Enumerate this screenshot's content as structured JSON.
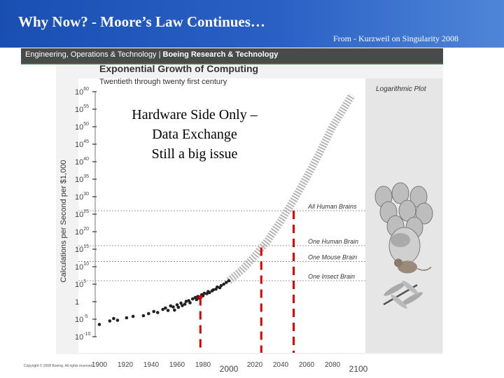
{
  "slide": {
    "title": "Why Now? - Moore’s Law Continues…",
    "credit": "From - Kurzweil on Singularity 2008",
    "org_prefix": "Engineering, Operations & Technology |",
    "org_bold": " Boeing Research & Technology",
    "overlay_lines": [
      "Hardware Side Only –",
      "Data Exchange",
      "Still a big issue"
    ],
    "copyright": "Copyright © 2008 Boeing. All rights reserved."
  },
  "chart_data": {
    "type": "scatter",
    "title": "Exponential Growth of Computing",
    "subtitle": "Twentieth through twenty first century",
    "plot_label": "Logarithmic Plot",
    "ylabel": "Calculations per Second per $1,000",
    "xlabel": "",
    "y_scale": "log10",
    "xlim": [
      1900,
      2100
    ],
    "ylim_exponent": [
      -10,
      60
    ],
    "x_ticks": [
      {
        "value": 1900,
        "label": "1900"
      },
      {
        "value": 1920,
        "label": "1920"
      },
      {
        "value": 1940,
        "label": "1940"
      },
      {
        "value": 1960,
        "label": "1960"
      },
      {
        "value": 1980,
        "label": "1980"
      },
      {
        "value": 2000,
        "label": "2000"
      },
      {
        "value": 2020,
        "label": "2020"
      },
      {
        "value": 2040,
        "label": "2040"
      },
      {
        "value": 2060,
        "label": "2060"
      },
      {
        "value": 2080,
        "label": "2080"
      },
      {
        "value": 2100,
        "label": "2100"
      }
    ],
    "y_ticks": [
      {
        "exp": 60,
        "base": "10",
        "sup": "60"
      },
      {
        "exp": 55,
        "base": "10",
        "sup": "55"
      },
      {
        "exp": 50,
        "base": "10",
        "sup": "50"
      },
      {
        "exp": 45,
        "base": "10",
        "sup": "45"
      },
      {
        "exp": 40,
        "base": "10",
        "sup": "40"
      },
      {
        "exp": 35,
        "base": "10",
        "sup": "35"
      },
      {
        "exp": 30,
        "base": "10",
        "sup": "30"
      },
      {
        "exp": 25,
        "base": "10",
        "sup": "25"
      },
      {
        "exp": 20,
        "base": "10",
        "sup": "20"
      },
      {
        "exp": 15,
        "base": "10",
        "sup": "15"
      },
      {
        "exp": 10,
        "base": "10",
        "sup": "10"
      },
      {
        "exp": 5,
        "base": "10",
        "sup": "5"
      },
      {
        "exp": 0,
        "base": "1",
        "sup": ""
      },
      {
        "exp": -5,
        "base": "10",
        "sup": "-5"
      },
      {
        "exp": -10,
        "base": "10",
        "sup": "-10"
      }
    ],
    "reference_lines": [
      {
        "name": "All Human Brains",
        "exp": 26
      },
      {
        "name": "One Human Brain",
        "exp": 16
      },
      {
        "name": "One Mouse Brain",
        "exp": 11.5
      },
      {
        "name": "One Insect Brain",
        "exp": 6
      }
    ],
    "data_points": [
      [
        1900,
        -6.5
      ],
      [
        1908,
        -5.5
      ],
      [
        1911,
        -4.8
      ],
      [
        1914,
        -5.3
      ],
      [
        1921,
        -4.6
      ],
      [
        1926,
        -4.2
      ],
      [
        1934,
        -4.0
      ],
      [
        1938,
        -3.4
      ],
      [
        1942,
        -2.8
      ],
      [
        1945,
        -3.1
      ],
      [
        1949,
        -2.2
      ],
      [
        1951,
        -1.8
      ],
      [
        1953,
        -2.5
      ],
      [
        1955,
        -1.2
      ],
      [
        1957,
        -1.5
      ],
      [
        1958,
        -2.4
      ],
      [
        1960,
        -0.9
      ],
      [
        1961,
        -1.6
      ],
      [
        1963,
        -0.4
      ],
      [
        1964,
        -1.1
      ],
      [
        1966,
        -0.7
      ],
      [
        1967,
        0.1
      ],
      [
        1969,
        0.3
      ],
      [
        1970,
        -0.3
      ],
      [
        1972,
        0.8
      ],
      [
        1974,
        1.2
      ],
      [
        1975,
        0.6
      ],
      [
        1976,
        1.5
      ],
      [
        1977,
        1.0
      ],
      [
        1979,
        2.0
      ],
      [
        1980,
        1.7
      ],
      [
        1981,
        2.4
      ],
      [
        1983,
        2.3
      ],
      [
        1984,
        2.9
      ],
      [
        1985,
        2.6
      ],
      [
        1987,
        3.1
      ],
      [
        1988,
        3.4
      ],
      [
        1990,
        3.6
      ],
      [
        1991,
        4.2
      ],
      [
        1993,
        4.0
      ],
      [
        1994,
        4.6
      ],
      [
        1996,
        5.0
      ],
      [
        1998,
        5.5
      ],
      [
        2000,
        6.0
      ]
    ],
    "highlight_points": [
      [
        1978,
        1.3
      ]
    ],
    "trend": [
      [
        2000,
        6
      ],
      [
        2010,
        9
      ],
      [
        2020,
        13
      ],
      [
        2030,
        17.5
      ],
      [
        2040,
        23
      ],
      [
        2050,
        29
      ],
      [
        2060,
        35.5
      ],
      [
        2070,
        42.5
      ],
      [
        2080,
        50
      ],
      [
        2090,
        56
      ],
      [
        2095,
        59
      ]
    ],
    "markers": [
      {
        "year": 1978,
        "exp": 1.3
      },
      {
        "year": 2025,
        "exp": 15.5
      },
      {
        "year": 2050,
        "exp": 26
      }
    ],
    "illustrations": [
      {
        "name": "crowd-of-heads",
        "exp": 26
      },
      {
        "name": "human-head",
        "exp": 16
      },
      {
        "name": "mouse",
        "exp": 11.5
      },
      {
        "name": "dragonfly",
        "exp": 6
      }
    ],
    "colors": {
      "marker": "#e00000",
      "trend": "#b5b5b5",
      "header": "#1a4fb2"
    }
  }
}
